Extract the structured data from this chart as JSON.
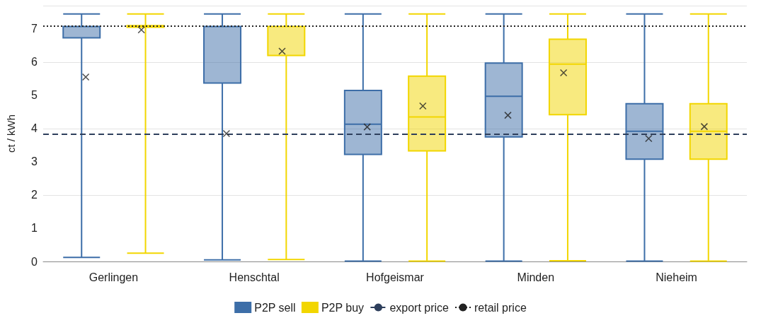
{
  "chart_data": {
    "type": "box",
    "ylabel": "ct / kWh",
    "categories": [
      "Gerlingen",
      "Henschtal",
      "Hofgeismar",
      "Minden",
      "Nieheim"
    ],
    "ylim": [
      0,
      7.7
    ],
    "yticks": [
      0,
      1,
      2,
      3,
      4,
      5,
      6,
      7
    ],
    "grid": "y",
    "legend": "bottom",
    "marker": "cross",
    "series": [
      {
        "name": "P2P sell",
        "color": "#3d6ea8",
        "boxes": [
          {
            "low": 0.12,
            "q1": 6.73,
            "median": 7.07,
            "q3": 7.07,
            "high": 7.45,
            "mean": 5.55
          },
          {
            "low": 0.05,
            "q1": 5.37,
            "median": 7.07,
            "q3": 7.07,
            "high": 7.45,
            "mean": 3.85
          },
          {
            "low": 0.01,
            "q1": 3.22,
            "median": 4.13,
            "q3": 5.15,
            "high": 7.45,
            "mean": 4.05
          },
          {
            "low": 0.01,
            "q1": 3.75,
            "median": 4.97,
            "q3": 5.97,
            "high": 7.45,
            "mean": 4.4
          },
          {
            "low": 0.01,
            "q1": 3.08,
            "median": 3.92,
            "q3": 4.75,
            "high": 7.45,
            "mean": 3.7
          }
        ]
      },
      {
        "name": "P2P buy",
        "color": "#f2d600",
        "boxes": [
          {
            "low": 0.25,
            "q1": 7.05,
            "median": 7.07,
            "q3": 7.1,
            "high": 7.45,
            "mean": 6.97
          },
          {
            "low": 0.06,
            "q1": 6.2,
            "median": 7.07,
            "q3": 7.07,
            "high": 7.45,
            "mean": 6.33
          },
          {
            "low": 0.01,
            "q1": 3.33,
            "median": 4.35,
            "q3": 5.58,
            "high": 7.45,
            "mean": 4.68
          },
          {
            "low": 0.02,
            "q1": 4.42,
            "median": 5.94,
            "q3": 6.69,
            "high": 7.45,
            "mean": 5.68
          },
          {
            "low": 0.01,
            "q1": 3.08,
            "median": 3.92,
            "q3": 4.75,
            "high": 7.45,
            "mean": 4.06
          }
        ]
      }
    ],
    "ref_lines": [
      {
        "axis": "y",
        "value": 3.83,
        "label": "export price",
        "color": "#2e3f5c",
        "line_style": "dashed"
      },
      {
        "axis": "y",
        "value": 7.08,
        "label": "retail price",
        "color": "#222222",
        "line_style": "dotted"
      }
    ]
  }
}
